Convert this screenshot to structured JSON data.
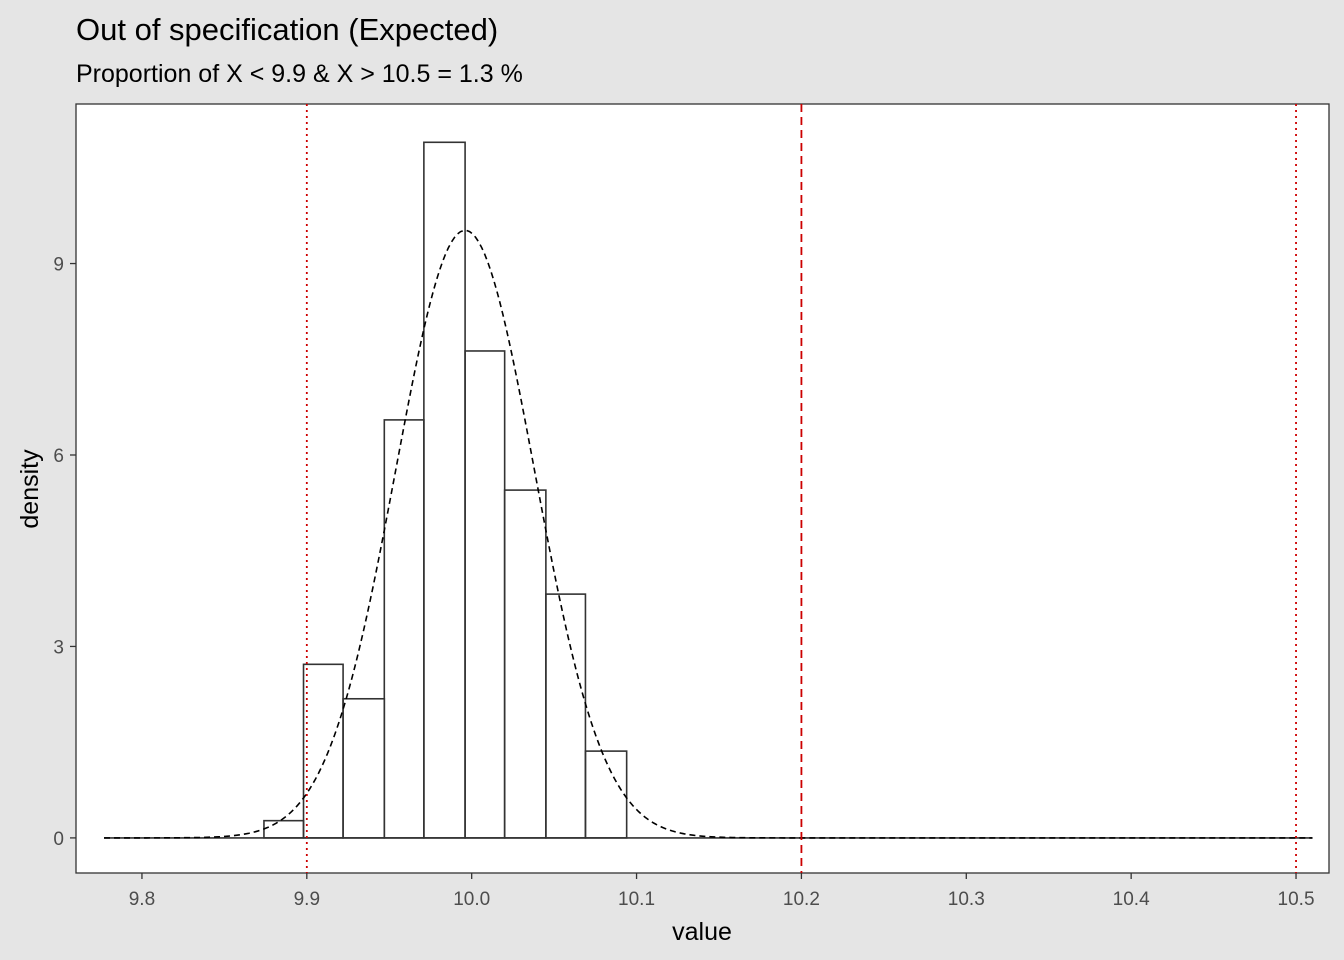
{
  "title": "Out of specification (Expected)",
  "subtitle": "Proportion of X < 9.9 & X > 10.5  = 1.3 %",
  "chart_data": {
    "type": "bar",
    "subtype": "histogram-with-density",
    "xlabel": "value",
    "ylabel": "density",
    "xlim": [
      9.76,
      10.52
    ],
    "ylim": [
      -0.55,
      11.5
    ],
    "x_ticks": [
      9.8,
      9.9,
      10.0,
      10.1,
      10.2,
      10.3,
      10.4,
      10.5
    ],
    "x_tick_labels": [
      "9.8",
      "9.9",
      "10.0",
      "10.1",
      "10.2",
      "10.3",
      "10.4",
      "10.5"
    ],
    "y_ticks": [
      0,
      3,
      6,
      9
    ],
    "y_tick_labels": [
      "0",
      "3",
      "6",
      "9"
    ],
    "grid": false,
    "bins": [
      {
        "x0": 9.874,
        "x1": 9.898,
        "density": 0.27
      },
      {
        "x0": 9.898,
        "x1": 9.922,
        "density": 2.72
      },
      {
        "x0": 9.922,
        "x1": 9.947,
        "density": 2.18
      },
      {
        "x0": 9.947,
        "x1": 9.971,
        "density": 6.55
      },
      {
        "x0": 9.971,
        "x1": 9.996,
        "density": 10.9
      },
      {
        "x0": 9.996,
        "x1": 10.02,
        "density": 7.63
      },
      {
        "x0": 10.02,
        "x1": 10.045,
        "density": 5.45
      },
      {
        "x0": 10.045,
        "x1": 10.069,
        "density": 3.82
      },
      {
        "x0": 10.069,
        "x1": 10.094,
        "density": 1.36
      }
    ],
    "baseline_range": [
      9.777,
      10.51
    ],
    "density_curve": {
      "type": "normal",
      "mean": 9.996,
      "sd": 0.042,
      "peak": 9.52
    },
    "reference_lines": [
      {
        "x": 9.9,
        "style": "dotted",
        "color": "#cc0000"
      },
      {
        "x": 10.2,
        "style": "dashed",
        "color": "#cc0000"
      },
      {
        "x": 10.5,
        "style": "dotted",
        "color": "#cc0000"
      }
    ]
  }
}
